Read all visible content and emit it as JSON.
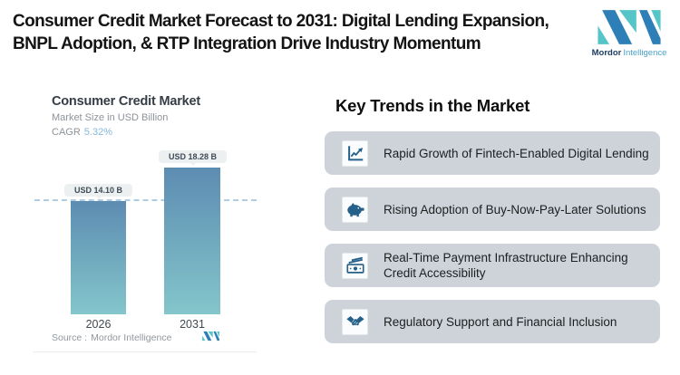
{
  "header": {
    "title_line1": "Consumer Credit Market Forecast to 2031: Digital Lending Expansion,",
    "title_line2": "BNPL Adoption, & RTP Integration Drive Industry Momentum",
    "logo": {
      "brand_bold": "Mordor",
      "brand_light": "Intelligence"
    }
  },
  "chart_data": {
    "type": "bar",
    "title": "Consumer Credit Market",
    "subtitle": "Market Size in USD Billion",
    "cagr_label": "CAGR",
    "cagr_value": "5.32%",
    "categories": [
      "2026",
      "2031"
    ],
    "values": [
      14.1,
      18.28
    ],
    "value_labels": [
      "USD 14.10 B",
      "USD 18.28 B"
    ],
    "ylabel": "Market Size in USD Billion",
    "dashed_reference_value": 14.1,
    "legend": "none",
    "grid": "off",
    "source_label": "Source :",
    "source_value": "Mordor Intelligence",
    "colors": {
      "bar_top": "#5d8cb2",
      "bar_bottom": "#83c6cb",
      "dashed_line": "#aecde3",
      "cagr_accent": "#85b9dc"
    }
  },
  "trends": {
    "heading": "Key Trends in the Market",
    "items": [
      {
        "icon": "line-chart-growth-icon",
        "label": "Rapid Growth of Fintech-Enabled Digital Lending"
      },
      {
        "icon": "piggy-bank-icon",
        "label": "Rising Adoption of Buy-Now-Pay-Later Solutions"
      },
      {
        "icon": "banknote-icon",
        "label": "Real-Time Payment Infrastructure Enhancing Credit Accessibility"
      },
      {
        "icon": "handshake-icon",
        "label": "Regulatory Support and Financial Inclusion"
      }
    ]
  }
}
